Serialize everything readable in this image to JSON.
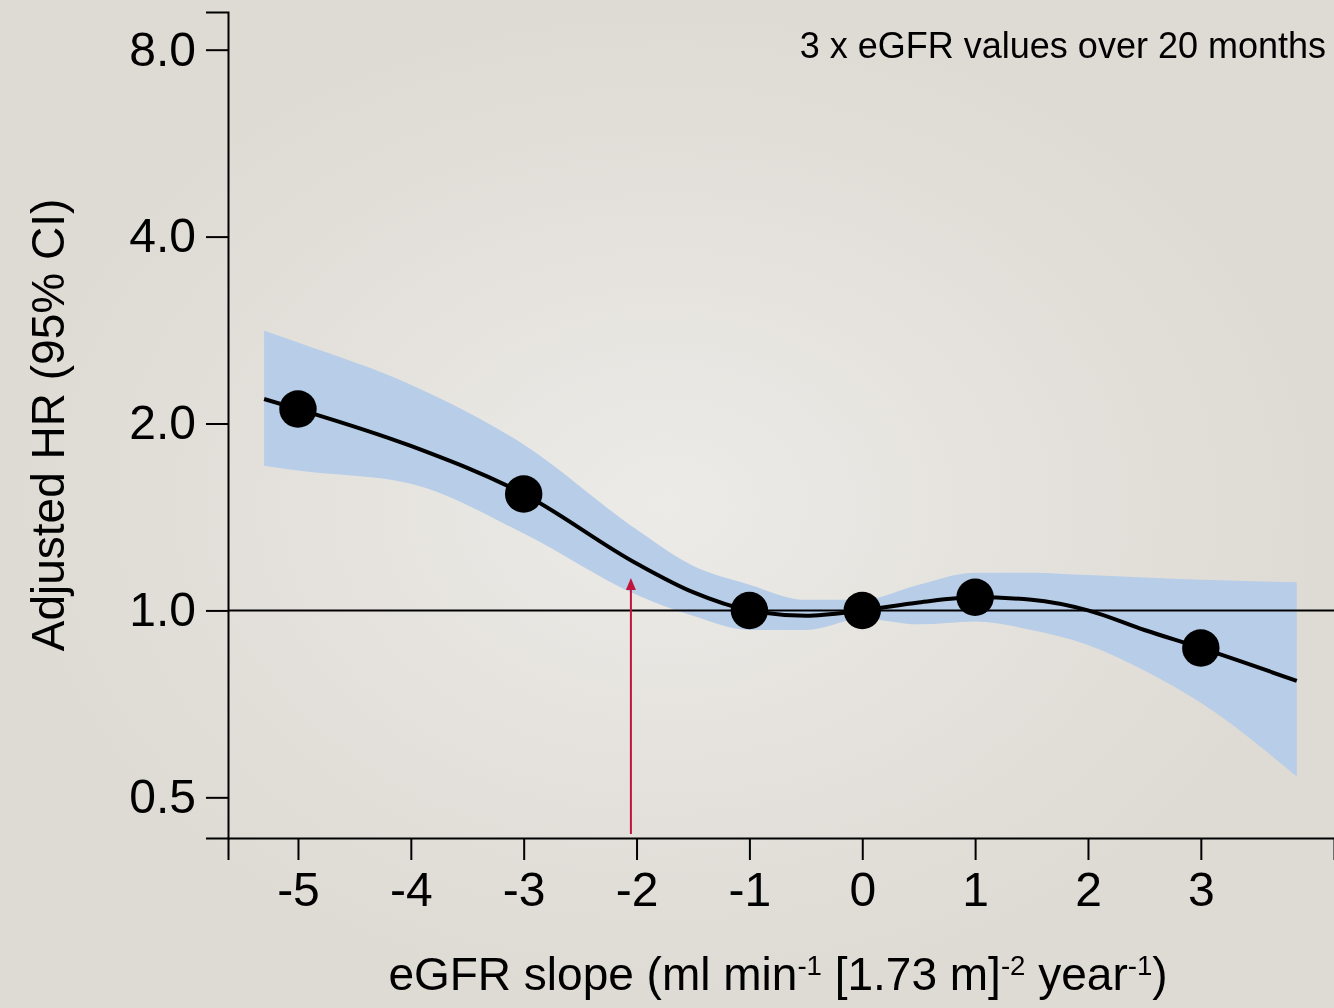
{
  "chart_data": {
    "type": "line",
    "xlabel": "eGFR slope (ml min$^{-1}$ [1.73 m]$^{-2}$ year$^{-1}$)",
    "ylabel": "Adjusted HR (95% CI)",
    "annotations": [
      "3 x eGFR values over 20 months"
    ],
    "log": "y",
    "xlim": [
      -5.62,
      4.18
    ],
    "ylim": [
      0.43,
      9.2
    ],
    "xticks": [
      -5,
      -4,
      -3,
      -2,
      -1,
      0,
      1,
      2,
      3
    ],
    "yticks": [
      {
        "value": 0.5,
        "label": "0.5"
      },
      {
        "value": 1,
        "label": "1.0"
      },
      {
        "value": 2,
        "label": "2.0"
      },
      {
        "value": 4,
        "label": "4.0"
      },
      {
        "value": 8,
        "label": "8.0"
      }
    ],
    "grid": false,
    "ref_lines": [
      {
        "axis": "y",
        "value": 1,
        "color": "#000000"
      },
      {
        "axis": "x",
        "value": -2.05,
        "color": "#c0143c"
      }
    ],
    "series": [
      {
        "color": "#000000",
        "marker": "none",
        "x": [
          -5.3,
          -5,
          -4,
          -3,
          -2,
          -1.5,
          -1,
          -0.5,
          0,
          0.5,
          1,
          1.5,
          2,
          2.5,
          3,
          3.85
        ],
        "values": [
          2.19,
          2.11,
          1.84,
          1.54,
          1.19,
          1.07,
          1.0,
          0.98,
          1.0,
          1.03,
          1.05,
          1.04,
          1.0,
          0.93,
          0.87,
          0.77
        ],
        "lower": [
          1.71,
          1.68,
          1.6,
          1.33,
          1.06,
          0.98,
          0.93,
          0.93,
          0.97,
          0.95,
          0.96,
          0.93,
          0.88,
          0.8,
          0.71,
          0.54
        ],
        "upper": [
          2.82,
          2.7,
          2.31,
          1.85,
          1.35,
          1.18,
          1.1,
          1.04,
          1.04,
          1.1,
          1.15,
          1.15,
          1.14,
          1.13,
          1.12,
          1.11
        ]
      },
      {
        "type": "scatter",
        "color": "#000000",
        "marker": "circle",
        "x": [
          -5,
          -3,
          -1,
          0,
          1,
          3
        ],
        "values": [
          2.11,
          1.54,
          1.0,
          1.0,
          1.05,
          0.87
        ]
      }
    ]
  }
}
